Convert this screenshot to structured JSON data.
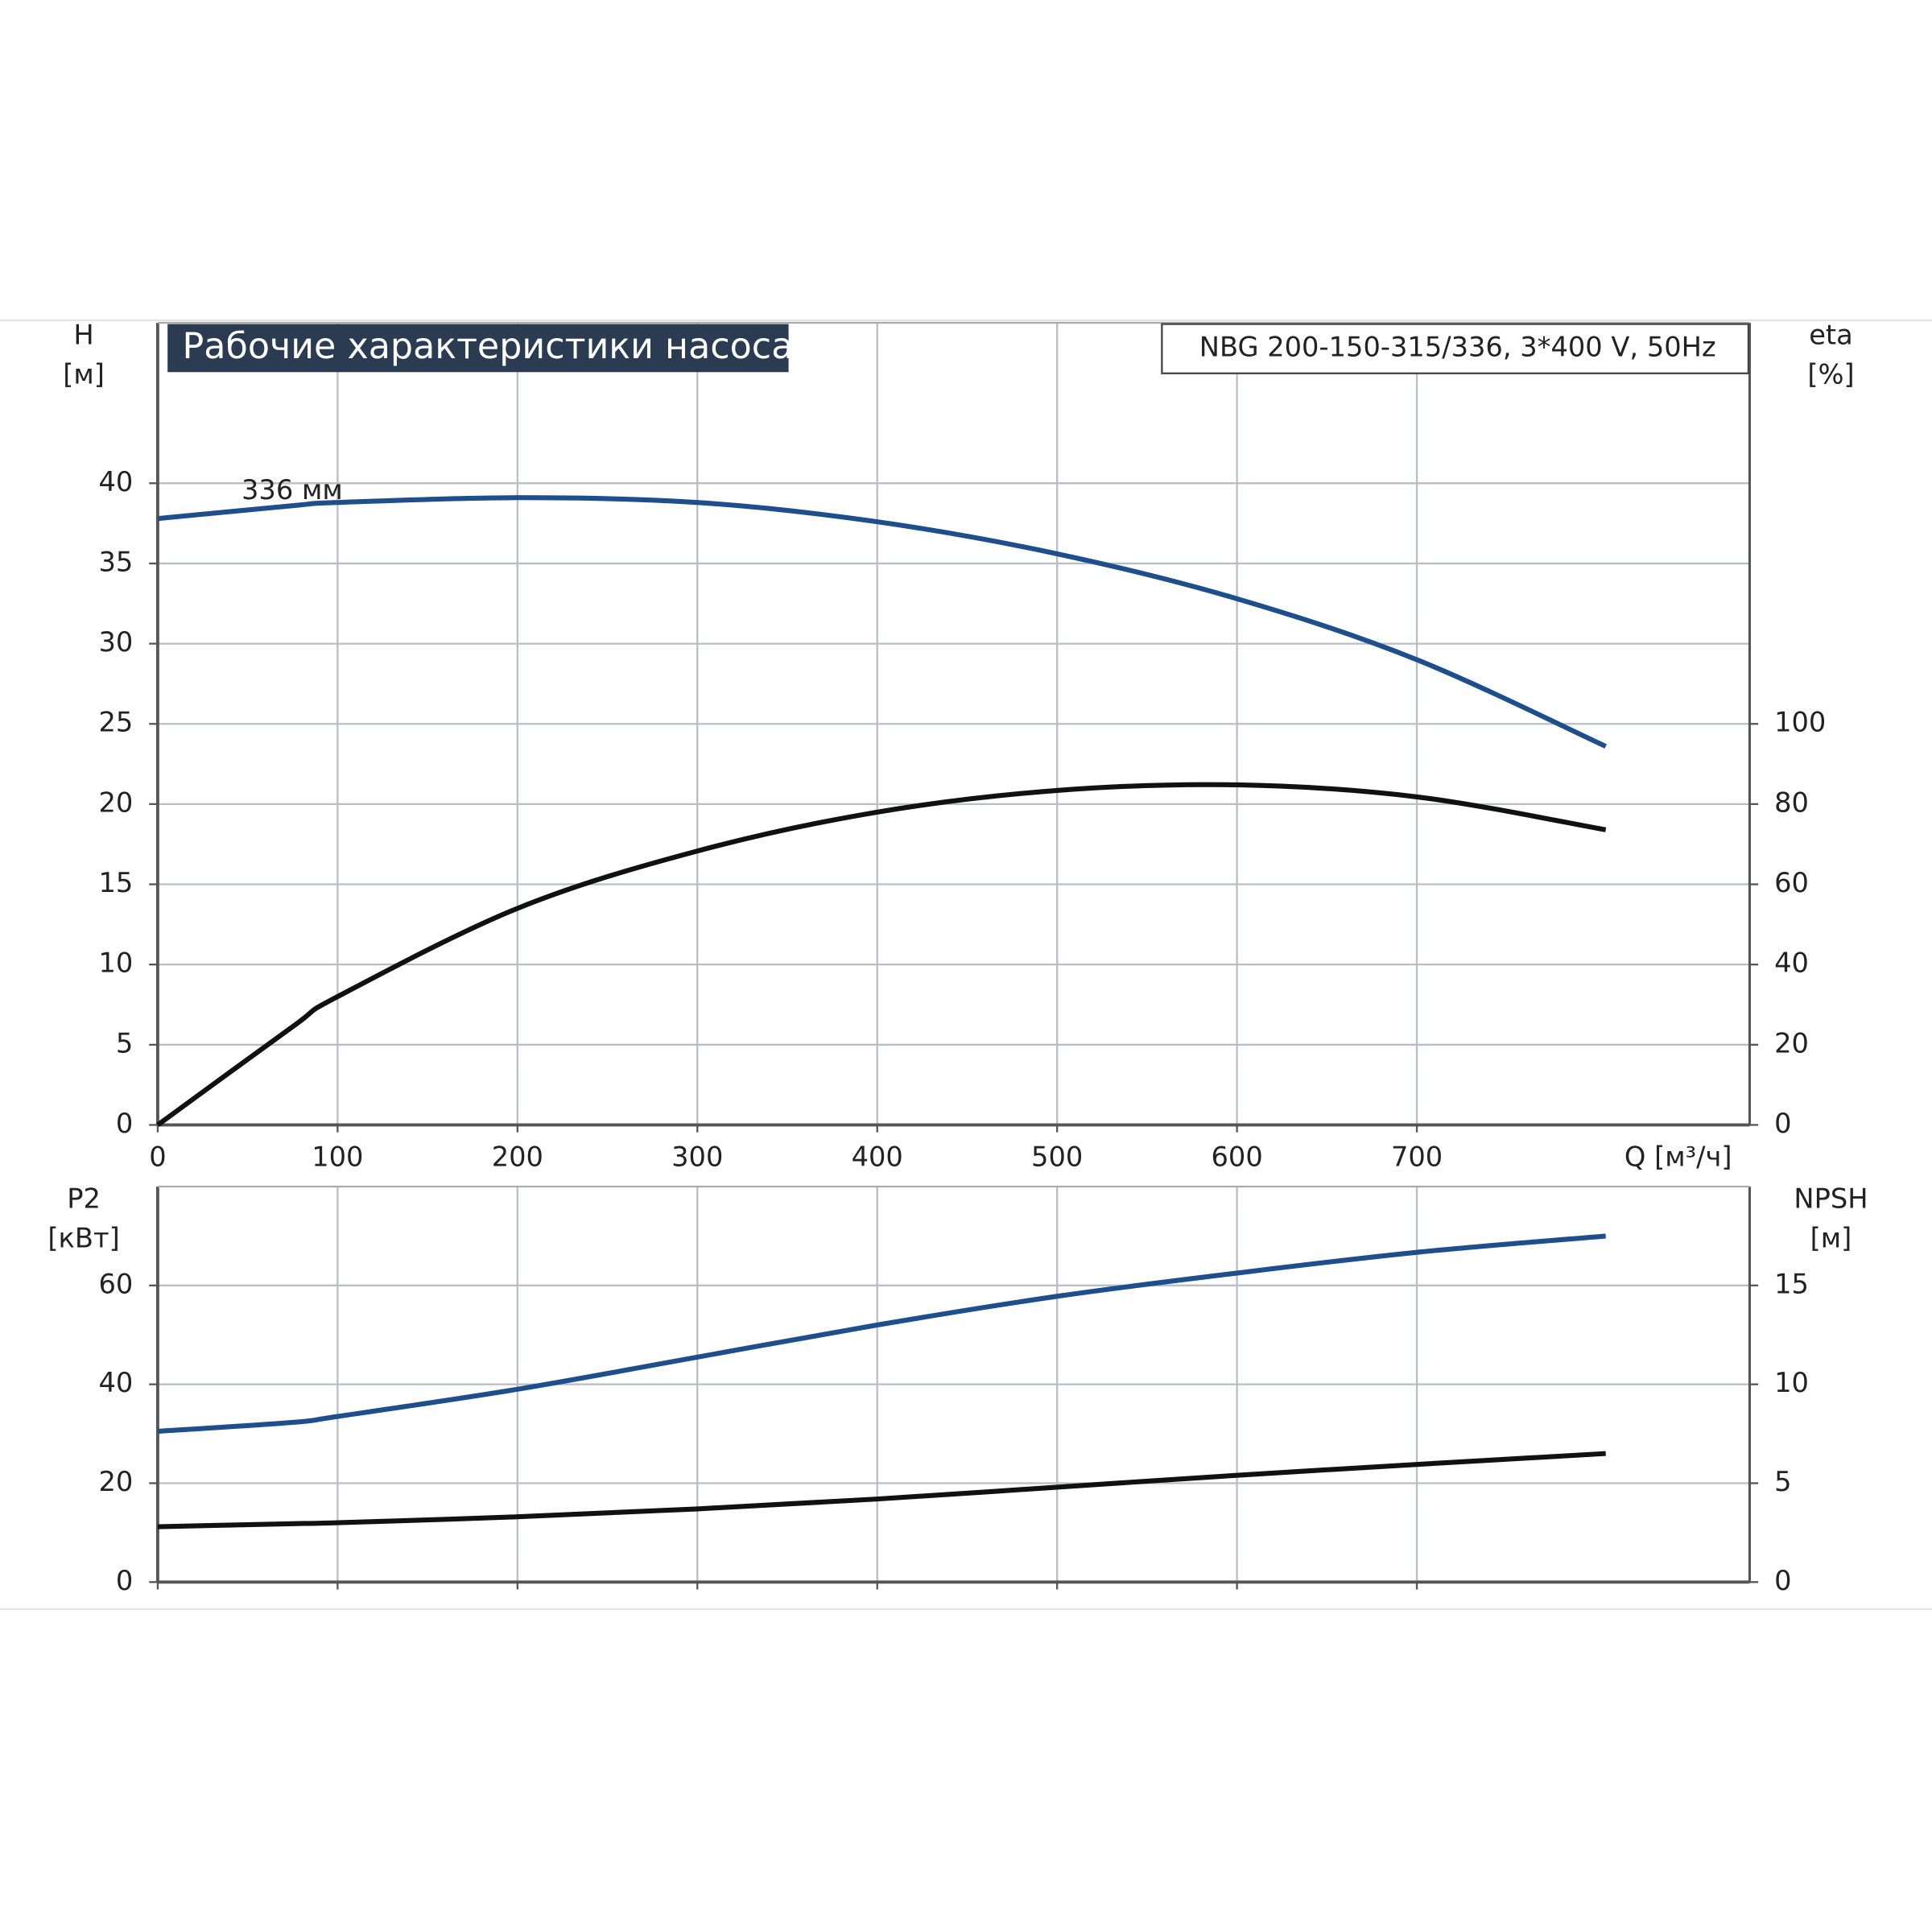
{
  "chart_data": [
    {
      "type": "line",
      "title": "Рабочие характеристики насоса",
      "subtitle": "NBG 200-150-315/336, 3*400 V, 50Hz",
      "ylabel": "H",
      "yunit": "[м]",
      "y2label": "eta",
      "y2unit": "[%]",
      "xlabel": "Q [м³/ч]",
      "x": [
        0,
        75,
        100,
        200,
        300,
        400,
        500,
        600,
        700,
        805
      ],
      "xlim": [
        0,
        885
      ],
      "xticks": [
        0,
        100,
        200,
        300,
        400,
        500,
        600,
        700
      ],
      "ylim": [
        0,
        50
      ],
      "yticks": [
        0,
        5,
        10,
        15,
        20,
        25,
        30,
        35,
        40
      ],
      "y2lim": [
        0,
        200
      ],
      "y2ticks": [
        0,
        20,
        40,
        60,
        80,
        100
      ],
      "grid": true,
      "series": [
        {
          "name": "336 мм",
          "color": "#1f4e8c",
          "values": [
            37.8,
            38.6,
            38.8,
            39.1,
            38.8,
            37.6,
            35.6,
            32.8,
            29.0,
            23.6
          ]
        },
        {
          "color": "#111111",
          "axis": "y2",
          "values": [
            0,
            24.5,
            32,
            54,
            68.3,
            78,
            83.4,
            84.8,
            81.8,
            73.6
          ]
        }
      ]
    },
    {
      "type": "line",
      "ylabel": "P2",
      "yunit": "[кВт]",
      "y2label": "NPSH",
      "y2unit": "[м]",
      "x": [
        0,
        75,
        100,
        200,
        300,
        400,
        500,
        600,
        700,
        805
      ],
      "xlim": [
        0,
        885
      ],
      "ylim": [
        0,
        80
      ],
      "yticks": [
        0,
        20,
        40,
        60
      ],
      "y2lim": [
        0,
        20
      ],
      "y2ticks": [
        0,
        5,
        10,
        15
      ],
      "grid": true,
      "series": [
        {
          "color": "#1f4e8c",
          "values": [
            30.5,
            32.3,
            33.5,
            39,
            45.5,
            52,
            57.8,
            62.5,
            66.7,
            70
          ]
        },
        {
          "color": "#111111",
          "axis": "y2",
          "values": [
            2.8,
            2.95,
            3.0,
            3.3,
            3.7,
            4.2,
            4.8,
            5.4,
            5.95,
            6.5
          ]
        }
      ]
    }
  ]
}
